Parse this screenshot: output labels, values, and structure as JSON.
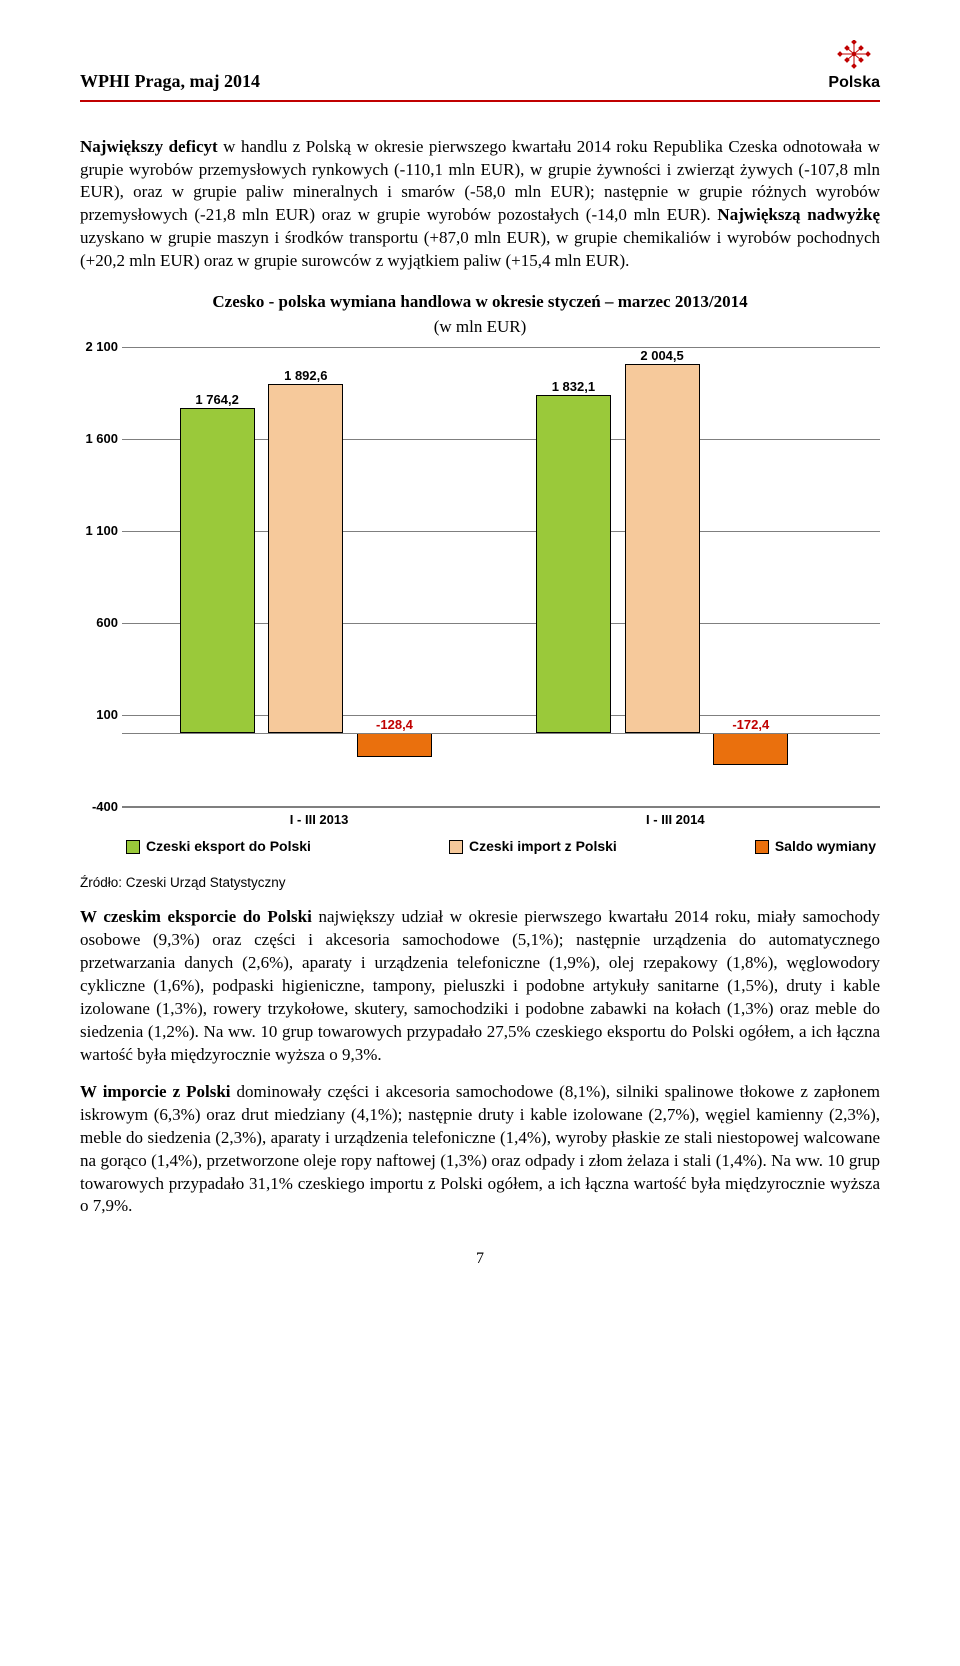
{
  "header": {
    "left": "WPHI  Praga, maj 2014",
    "logo_text": "Polska",
    "rule_color": "#c00000"
  },
  "paragraphs": {
    "p1_lead": "Największy deficyt",
    "p1_rest": " w handlu z Polską w okresie pierwszego kwartału 2014 roku Republika Czeska odnotowała w grupie wyrobów przemysłowych rynkowych (-110,1 mln EUR), w grupie żywności i zwierząt żywych (-107,8 mln EUR), oraz w grupie paliw mineralnych i smarów (-58,0 mln EUR); następnie w grupie różnych wyrobów przemysłowych (-21,8 mln EUR) oraz w grupie wyrobów pozostałych (-14,0 mln EUR). ",
    "p1_mid_bold": "Największą nadwyżkę",
    "p1_tail": " uzyskano w grupie maszyn i środków transportu (+87,0 mln EUR), w grupie chemikaliów i wyrobów pochodnych (+20,2 mln EUR) oraz w grupie surowców z wyjątkiem paliw (+15,4 mln EUR).",
    "p2_lead": "W czeskim eksporcie do Polski",
    "p2_rest": " największy udział w okresie pierwszego kwartału 2014 roku, miały samochody osobowe (9,3%) oraz części i akcesoria samochodowe (5,1%); następnie urządzenia do automatycznego przetwarzania danych (2,6%), aparaty i urządzenia telefoniczne (1,9%), olej rzepakowy (1,8%), węglowodory cykliczne (1,6%), podpaski higieniczne, tampony, pieluszki i podobne artykuły sanitarne (1,5%), druty i kable izolowane (1,3%), rowery trzykołowe, skutery, samochodziki i podobne zabawki na kołach (1,3%) oraz meble do siedzenia (1,2%). Na ww. 10 grup towarowych przypadało 27,5% czeskiego eksportu do Polski ogółem, a ich łączna wartość była międzyrocznie wyższa o 9,3%.",
    "p3_lead": "W imporcie z Polski",
    "p3_rest": " dominowały części i akcesoria samochodowe (8,1%), silniki spalinowe tłokowe z zapłonem iskrowym (6,3%) oraz drut miedziany (4,1%); następnie druty i kable izolowane (2,7%), węgiel kamienny (2,3%), meble do siedzenia (2,3%), aparaty i urządzenia telefoniczne (1,4%), wyroby płaskie ze stali niestopowej walcowane na gorąco (1,4%), przetworzone oleje ropy naftowej (1,3%) oraz odpady i złom żelaza i stali (1,4%). Na ww. 10 grup towarowych przypadało 31,1% czeskiego importu z Polski ogółem, a ich łączna wartość była międzyrocznie wyższa o 7,9%."
  },
  "chart": {
    "title": "Czesko - polska wymiana handlowa w okresie styczeń – marzec 2013/2014",
    "subtitle": "(w mln EUR)",
    "ymin": -400,
    "ymax": 2100,
    "ystep": 500,
    "yticks": [
      "-400",
      "100",
      "600",
      "1 100",
      "1 600",
      "2 100"
    ],
    "grid_color": "#7f7f7f",
    "background_color": "#ffffff",
    "groups": [
      {
        "label": "I - III 2013",
        "bars": [
          {
            "value": 1764.2,
            "label": "1 764,2",
            "color": "#9ac93a"
          },
          {
            "value": 1892.6,
            "label": "1 892,6",
            "color": "#f6c99b"
          },
          {
            "value": -128.4,
            "label": "-128,4",
            "color": "#ea700d"
          }
        ]
      },
      {
        "label": "I - III 2014",
        "bars": [
          {
            "value": 1832.1,
            "label": "1 832,1",
            "color": "#9ac93a"
          },
          {
            "value": 2004.5,
            "label": "2 004,5",
            "color": "#f6c99b"
          },
          {
            "value": -172.4,
            "label": "-172,4",
            "color": "#ea700d"
          }
        ]
      }
    ],
    "legend": [
      {
        "label": "Czeski eksport do Polski",
        "color": "#9ac93a"
      },
      {
        "label": "Czeski import z Polski",
        "color": "#f6c99b"
      },
      {
        "label": "Saldo wymiany",
        "color": "#ea700d"
      }
    ]
  },
  "source": "Źródło: Czeski Urząd Statystyczny",
  "page_number": "7"
}
